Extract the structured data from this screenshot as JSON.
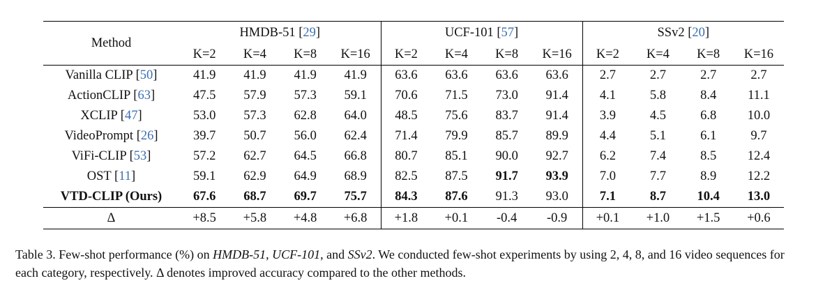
{
  "table": {
    "method_header": "Method",
    "groups": [
      {
        "name": "HMDB-51",
        "cite": "29"
      },
      {
        "name": "UCF-101",
        "cite": "57"
      },
      {
        "name": "SSv2",
        "cite": "20"
      }
    ],
    "k_labels": [
      "K=2",
      "K=4",
      "K=8",
      "K=16",
      "K=2",
      "K=4",
      "K=8",
      "K=16",
      "K=2",
      "K=4",
      "K=8",
      "K=16"
    ],
    "rows": [
      {
        "method": "Vanilla CLIP",
        "cite": "50",
        "values": [
          "41.9",
          "41.9",
          "41.9",
          "41.9",
          "63.6",
          "63.6",
          "63.6",
          "63.6",
          "2.7",
          "2.7",
          "2.7",
          "2.7"
        ],
        "bold": []
      },
      {
        "method": "ActionCLIP",
        "cite": "63",
        "values": [
          "47.5",
          "57.9",
          "57.3",
          "59.1",
          "70.6",
          "71.5",
          "73.0",
          "91.4",
          "4.1",
          "5.8",
          "8.4",
          "11.1"
        ],
        "bold": []
      },
      {
        "method": "XCLIP",
        "cite": "47",
        "values": [
          "53.0",
          "57.3",
          "62.8",
          "64.0",
          "48.5",
          "75.6",
          "83.7",
          "91.4",
          "3.9",
          "4.5",
          "6.8",
          "10.0"
        ],
        "bold": []
      },
      {
        "method": "VideoPrompt",
        "cite": "26",
        "values": [
          "39.7",
          "50.7",
          "56.0",
          "62.4",
          "71.4",
          "79.9",
          "85.7",
          "89.9",
          "4.4",
          "5.1",
          "6.1",
          "9.7"
        ],
        "bold": []
      },
      {
        "method": "ViFi-CLIP",
        "cite": "53",
        "values": [
          "57.2",
          "62.7",
          "64.5",
          "66.8",
          "80.7",
          "85.1",
          "90.0",
          "92.7",
          "6.2",
          "7.4",
          "8.5",
          "12.4"
        ],
        "bold": []
      },
      {
        "method": "OST",
        "cite": "11",
        "values": [
          "59.1",
          "62.9",
          "64.9",
          "68.9",
          "82.5",
          "87.5",
          "91.7",
          "93.9",
          "7.0",
          "7.7",
          "8.9",
          "12.2"
        ],
        "bold": [
          6,
          7
        ]
      },
      {
        "method": "VTD-CLIP (Ours)",
        "cite": "",
        "values": [
          "67.6",
          "68.7",
          "69.7",
          "75.7",
          "84.3",
          "87.6",
          "91.3",
          "93.0",
          "7.1",
          "8.7",
          "10.4",
          "13.0"
        ],
        "bold": [
          0,
          1,
          2,
          3,
          4,
          5,
          8,
          9,
          10,
          11
        ],
        "method_bold": true
      }
    ],
    "delta": {
      "label": "Δ",
      "values": [
        "+8.5",
        "+5.8",
        "+4.8",
        "+6.8",
        "+1.8",
        "+0.1",
        "-0.4",
        "-0.9",
        "+0.1",
        "+1.0",
        "+1.5",
        "+0.6"
      ]
    }
  },
  "caption": {
    "prefix": "Table 3. Few-shot performance (%) on ",
    "d1": "HMDB-51",
    "sep1": ", ",
    "d2": "UCF-101",
    "sep2": ", and ",
    "d3": "SSv2",
    "suffix": ". We conducted few-shot experiments by using 2, 4, 8, and 16 video sequences for each category, respectively. Δ denotes improved accuracy compared to the other methods."
  }
}
